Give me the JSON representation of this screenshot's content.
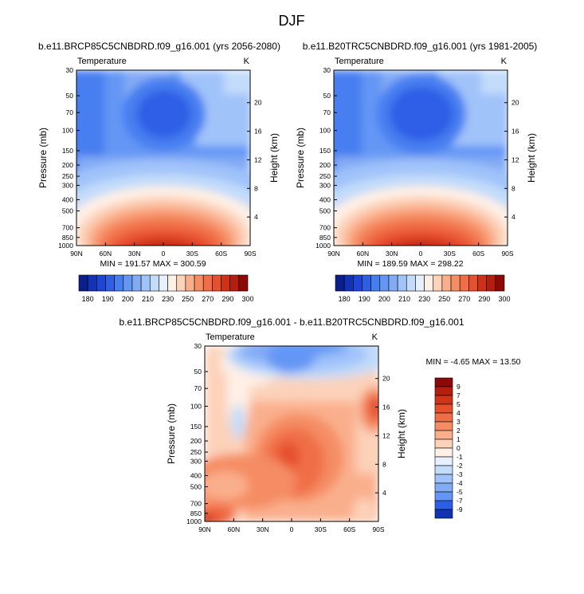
{
  "figure": {
    "title": "DJF"
  },
  "chart_data": [
    {
      "type": "heatmap",
      "title": "b.e11.BRCP85C5CNBDRD.f09_g16.001 (yrs 2056-2080)",
      "subtitle_left": "Temperature",
      "subtitle_right": "K",
      "xlabel": "",
      "ylabel": "Pressure (mb)",
      "ylabel_right": "Height (km)",
      "x_ticks": [
        "90N",
        "60N",
        "30N",
        "0",
        "30S",
        "60S",
        "90S"
      ],
      "y_ticks": [
        "30",
        "50",
        "70",
        "100",
        "150",
        "200",
        "250",
        "300",
        "400",
        "500",
        "700",
        "850",
        "1000"
      ],
      "y_right_ticks": [
        "20",
        "16",
        "12",
        "8",
        "4"
      ],
      "x_range": [
        90,
        -90
      ],
      "y_range": [
        30,
        1000
      ],
      "y_scale": "log",
      "stats_text": "MIN = 191.57  MAX = 300.59",
      "min": 191.57,
      "max": 300.59
    },
    {
      "type": "heatmap",
      "title": "b.e11.B20TRC5CNBDRD.f09_g16.001 (yrs 1981-2005)",
      "subtitle_left": "Temperature",
      "subtitle_right": "K",
      "xlabel": "",
      "ylabel": "Pressure (mb)",
      "ylabel_right": "Height (km)",
      "x_ticks": [
        "90N",
        "60N",
        "30N",
        "0",
        "30S",
        "60S",
        "90S"
      ],
      "y_ticks": [
        "30",
        "50",
        "70",
        "100",
        "150",
        "200",
        "250",
        "300",
        "400",
        "500",
        "700",
        "850",
        "1000"
      ],
      "y_right_ticks": [
        "20",
        "16",
        "12",
        "8",
        "4"
      ],
      "x_range": [
        90,
        -90
      ],
      "y_range": [
        30,
        1000
      ],
      "y_scale": "log",
      "stats_text": "MIN = 189.59  MAX = 298.22",
      "min": 189.59,
      "max": 298.22
    },
    {
      "type": "heatmap",
      "title": "b.e11.BRCP85C5CNBDRD.f09_g16.001 - b.e11.B20TRC5CNBDRD.f09_g16.001",
      "subtitle_left": "Temperature",
      "subtitle_right": "K",
      "xlabel": "",
      "ylabel": "Pressure (mb)",
      "ylabel_right": "Height (km)",
      "x_ticks": [
        "90N",
        "60N",
        "30N",
        "0",
        "30S",
        "60S",
        "90S"
      ],
      "y_ticks": [
        "30",
        "50",
        "70",
        "100",
        "150",
        "200",
        "250",
        "300",
        "400",
        "500",
        "700",
        "850",
        "1000"
      ],
      "y_right_ticks": [
        "20",
        "16",
        "12",
        "8",
        "4"
      ],
      "x_range": [
        90,
        -90
      ],
      "y_range": [
        30,
        1000
      ],
      "y_scale": "log",
      "stats_text": "MIN =  -4.65  MAX = 13.50",
      "min": -4.65,
      "max": 13.5
    }
  ],
  "colorbars": {
    "absolute": {
      "orientation": "horizontal",
      "labels": [
        "180",
        "190",
        "200",
        "210",
        "230",
        "250",
        "270",
        "290",
        "300"
      ],
      "colors": [
        "#0a1e8c",
        "#1432b4",
        "#1e46d2",
        "#2d5fe6",
        "#467ef0",
        "#6496f5",
        "#82aaf5",
        "#a0c3fa",
        "#c3dcfa",
        "#e6f0ff",
        "#fff0e6",
        "#fcd2b9",
        "#faaf8c",
        "#f58c64",
        "#f06e46",
        "#e6502d",
        "#cd3219",
        "#b41e0f",
        "#8c0a05"
      ]
    },
    "difference": {
      "orientation": "vertical",
      "labels": [
        "9",
        "7",
        "5",
        "4",
        "3",
        "2",
        "1",
        "0",
        "-1",
        "-2",
        "-3",
        "-4",
        "-5",
        "-7",
        "-9"
      ],
      "colors": [
        "#8c0a05",
        "#b41e0f",
        "#d23219",
        "#e6502d",
        "#f06e46",
        "#f58c64",
        "#faaf8c",
        "#fcd2b9",
        "#fff0e6",
        "#e6f0ff",
        "#c3dcfa",
        "#a0c3fa",
        "#82aaf5",
        "#6496f5",
        "#2d5fe6",
        "#1432b4"
      ]
    }
  }
}
